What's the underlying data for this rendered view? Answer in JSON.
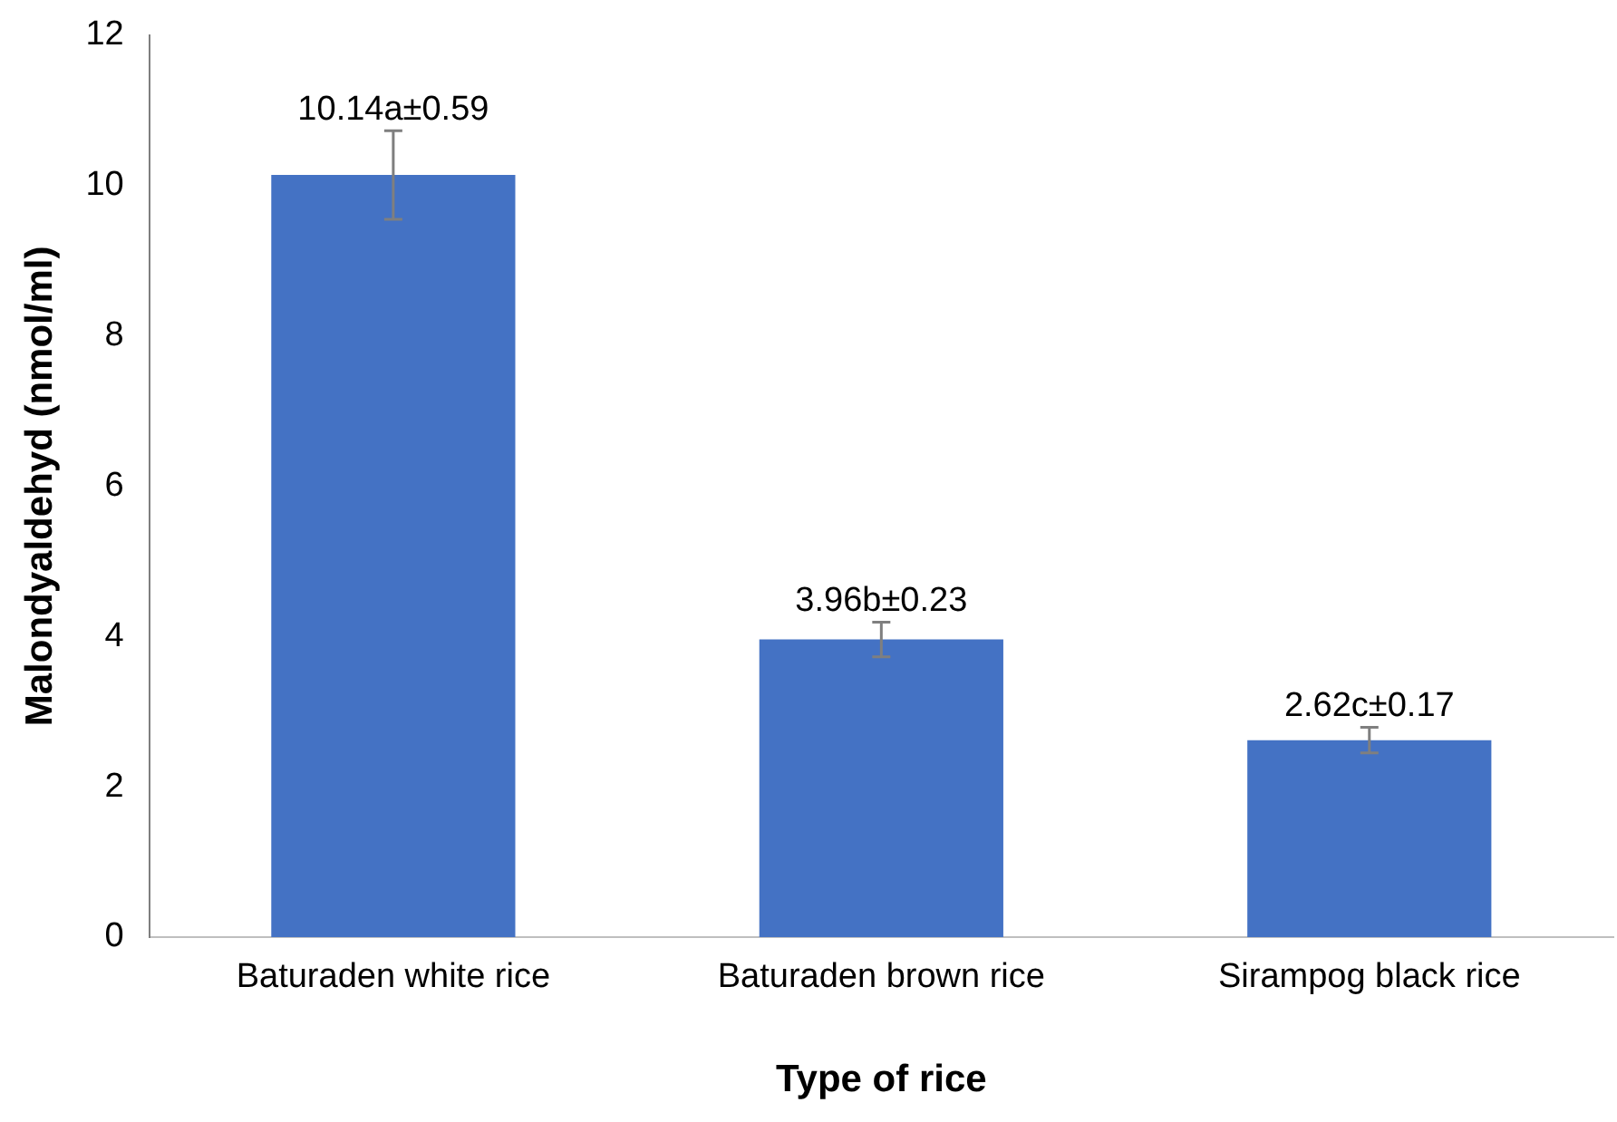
{
  "chart_data": {
    "type": "bar",
    "xlabel": "Type of rice",
    "ylabel": "Malondyaldehyd (nmol/ml)",
    "categories": [
      "Baturaden white rice",
      "Baturaden brown rice",
      "Sirampog black rice"
    ],
    "values": [
      10.14,
      3.96,
      2.62
    ],
    "errors": [
      0.59,
      0.23,
      0.17
    ],
    "annotations": [
      {
        "text": "10.14a±0.59",
        "x": "Baturaden white rice",
        "y": 10.73
      },
      {
        "text": "3.96b±0.23",
        "x": "Baturaden brown rice",
        "y": 4.19
      },
      {
        "text": "2.62c±0.17",
        "x": "Sirampog black rice",
        "y": 2.79
      }
    ],
    "color": "#4472c4",
    "ylim": [
      0,
      12
    ],
    "yticks": [
      0,
      2,
      4,
      6,
      8,
      10,
      12
    ]
  }
}
